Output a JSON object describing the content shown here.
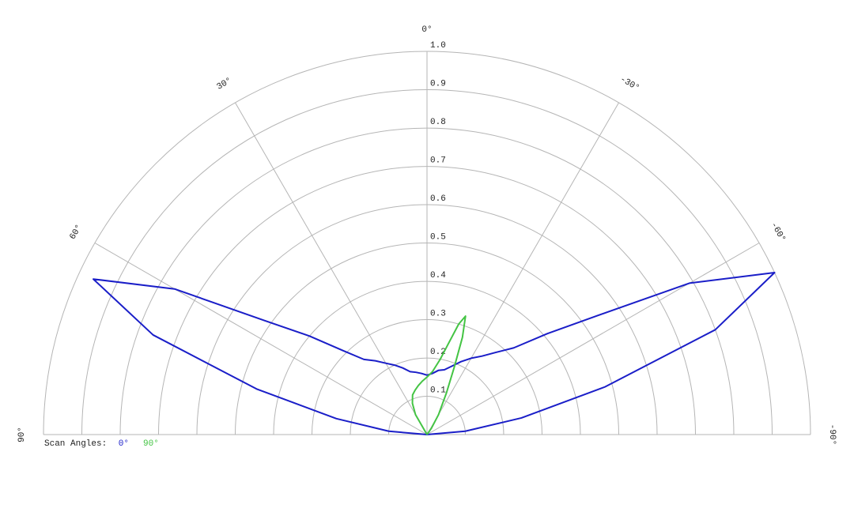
{
  "chart_data": {
    "type": "polar",
    "legend_title": "Scan Angles:",
    "rlim": [
      0,
      1
    ],
    "rticks": [
      0.1,
      0.2,
      0.3,
      0.4,
      0.5,
      0.6,
      0.7,
      0.8,
      0.9,
      {
        "value": 1,
        "label": "1.0"
      }
    ],
    "angle_ticks": [
      {
        "value": 90,
        "label": "90°"
      },
      {
        "value": 60,
        "label": "60°"
      },
      {
        "value": 30,
        "label": "30°"
      },
      {
        "value": 0,
        "label": "0°"
      },
      {
        "value": -30,
        "label": "-30°"
      },
      {
        "value": -60,
        "label": "-60°"
      },
      {
        "value": -90,
        "label": "-90°"
      }
    ],
    "series": [
      {
        "name": "0°",
        "color": "#1a1ec8",
        "x": [
          90,
          85,
          80,
          75,
          70,
          65,
          60,
          55,
          50,
          45,
          40,
          35,
          30,
          25,
          20,
          15,
          10,
          5,
          0,
          -5,
          -10,
          -15,
          -20,
          -25,
          -30,
          -35,
          -40,
          -45,
          -50,
          -55,
          -60,
          -65,
          -70,
          -75,
          -80,
          -85,
          -90
        ],
        "values": [
          0,
          0.1,
          0.24,
          0.46,
          0.76,
          0.96,
          0.76,
          0.52,
          0.4,
          0.31,
          0.256,
          0.235,
          0.215,
          0.2,
          0.185,
          0.17,
          0.165,
          0.16,
          0.155,
          0.16,
          0.17,
          0.175,
          0.19,
          0.21,
          0.23,
          0.25,
          0.28,
          0.32,
          0.41,
          0.54,
          0.79,
          1.0,
          0.8,
          0.48,
          0.25,
          0.1,
          0
        ]
      },
      {
        "name": "90°",
        "color": "#44c444",
        "x": [
          35,
          30,
          25,
          20,
          15,
          10,
          5,
          0,
          -5,
          -10,
          -13,
          -16,
          -18,
          -20,
          -22,
          -25,
          -30,
          -35,
          -40
        ],
        "values": [
          0,
          0.06,
          0.09,
          0.11,
          0.12,
          0.13,
          0.14,
          0.15,
          0.165,
          0.2,
          0.24,
          0.3,
          0.325,
          0.27,
          0.19,
          0.12,
          0.06,
          0.02,
          0
        ]
      }
    ]
  }
}
